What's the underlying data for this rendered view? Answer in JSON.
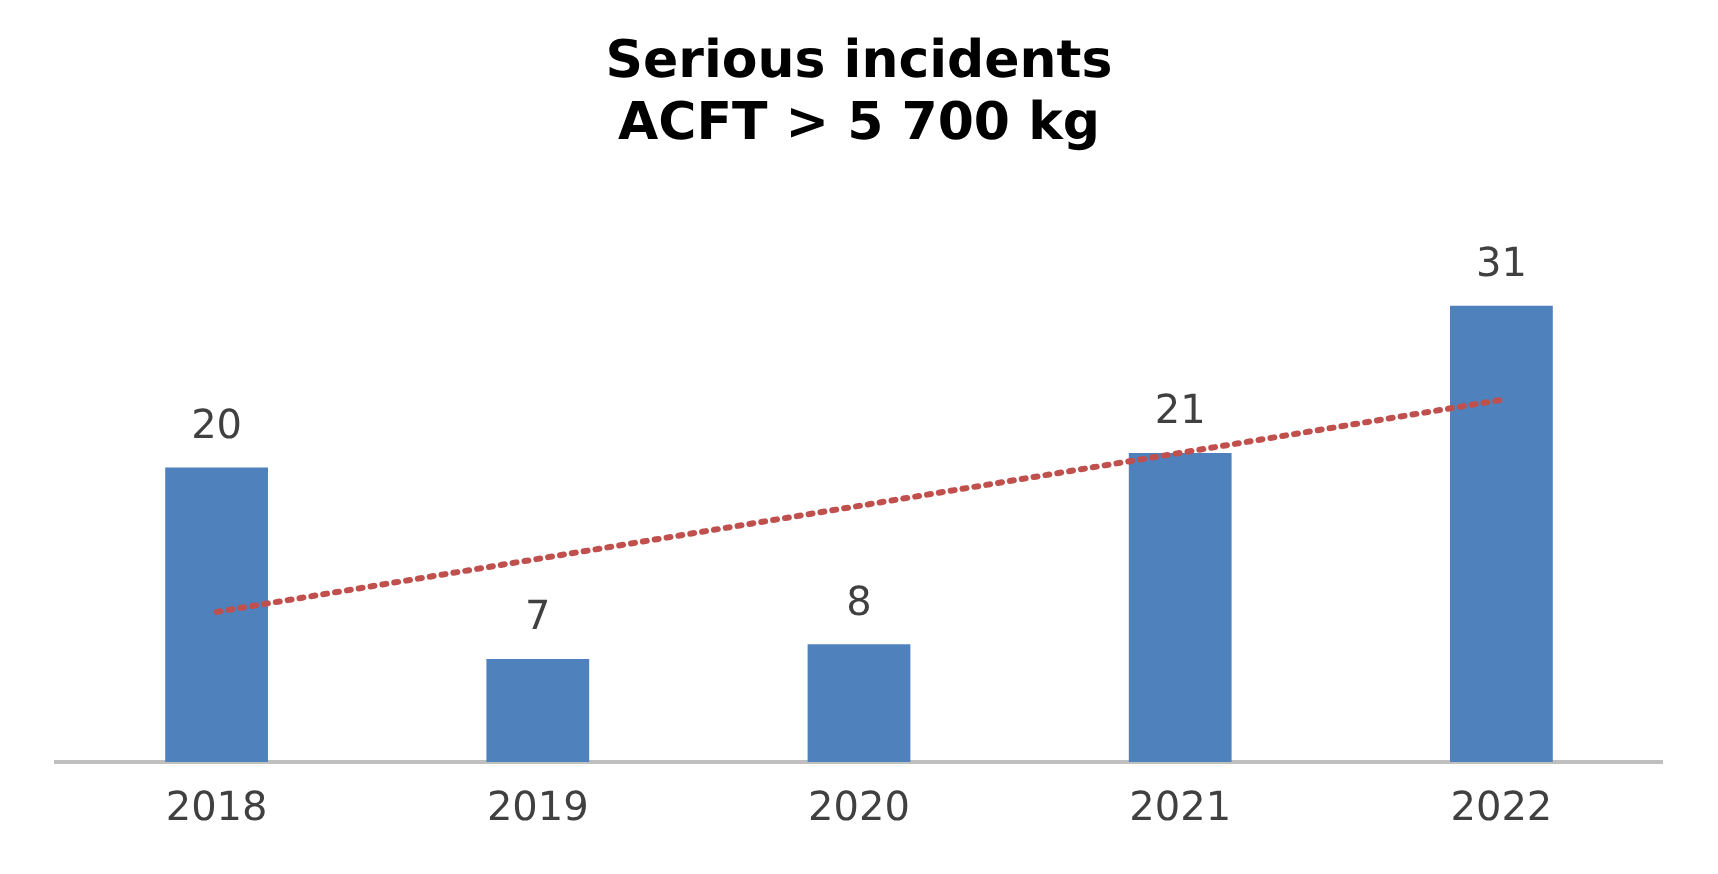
{
  "chart_data": {
    "type": "bar",
    "title": "Serious incidents\nACFT > 5 700 kg",
    "categories": [
      "2018",
      "2019",
      "2020",
      "2021",
      "2022"
    ],
    "series": [
      {
        "color": "#4f81bd",
        "values": [
          20,
          7,
          8,
          21,
          31
        ],
        "value_labels": [
          "20",
          "7",
          "8",
          "21",
          "31"
        ]
      },
      {
        "type": "line",
        "color": "#c0504d",
        "line_style": "dotted",
        "marker": "none",
        "values": [
          10.2,
          13.8,
          17.4,
          21,
          24.6
        ]
      }
    ],
    "grid": false,
    "legend": false,
    "tick_labels": "x"
  }
}
